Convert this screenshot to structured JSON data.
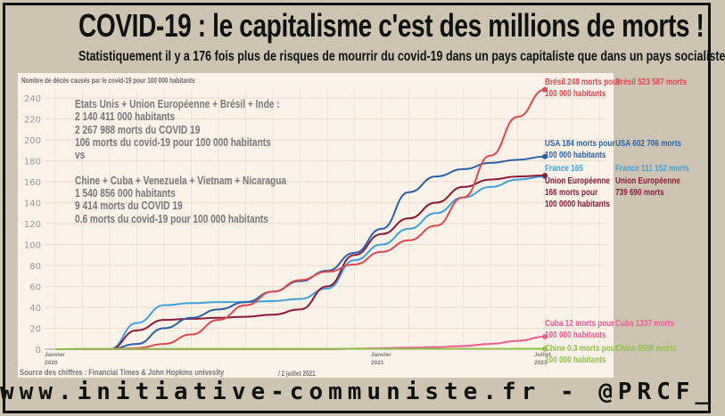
{
  "title": "COVID-19 : le capitalisme c'est des millions de morts !",
  "subtitle": "Statistiquement il y a 176 fois plus de risques de mourrir du covid-19 dans un pays capitaliste que dans un pays socialiste",
  "note": {
    "lines": [
      "Etats Unis + Union Européenne + Brésil + Inde :",
      " 2 140 411 000 habitants",
      " 2 267 988  morts du COVID 19",
      "106 morts du covid-19 pour 100 000 habitants",
      "vs",
      "",
      "Chine + Cuba + Venezuela + Vietnam + Nicaragua",
      "1 540 856 000 habitants",
      "9 414 morts du COVID 19",
      "0.6 morts du covid-19 pour 100 000 habitants"
    ]
  },
  "source": "Source des chiffres : Financial Times & John Hopkins univesity",
  "date": "/  2 juillet 2021",
  "url": "www.initiative-communiste.fr - @PRCF_",
  "chart_data": {
    "type": "line",
    "title": "Nombre de décès causés par le covid-19 pour 100 000 habitants",
    "ylim": [
      0,
      240
    ],
    "yticks": [
      0,
      20,
      40,
      60,
      80,
      100,
      120,
      140,
      160,
      180,
      200,
      220,
      240
    ],
    "xticks": [
      {
        "month": 0,
        "label": [
          "Janvier",
          "2020"
        ]
      },
      {
        "month": 12,
        "label": [
          "Janvier",
          "2021"
        ]
      },
      {
        "month": 18,
        "label": [
          "Juillet",
          "2021"
        ]
      }
    ],
    "x_months": [
      0,
      1,
      2,
      3,
      4,
      5,
      6,
      7,
      8,
      9,
      10,
      11,
      12,
      13,
      14,
      15,
      16,
      17,
      18
    ],
    "series": [
      {
        "name": "France",
        "color": "#3ea1de",
        "values": [
          0,
          0,
          0,
          25,
          42,
          44,
          45,
          45,
          46,
          48,
          58,
          85,
          100,
          115,
          130,
          145,
          155,
          162,
          165
        ],
        "label": [
          "France 165"
        ],
        "total": "France 111 152 morts"
      },
      {
        "name": "Union Européenne",
        "color": "#8b1a3a",
        "values": [
          0,
          0,
          0,
          18,
          28,
          29,
          30,
          31,
          33,
          38,
          60,
          90,
          110,
          125,
          140,
          155,
          162,
          165,
          166
        ],
        "label": [
          "Union Européenne",
          "166 morts pour",
          "100 0000 habitants"
        ],
        "total": [
          "Union Européenne",
          "739 690 morts"
        ]
      },
      {
        "name": "USA",
        "color": "#2a5fa8",
        "values": [
          0,
          0,
          0,
          5,
          20,
          30,
          38,
          45,
          55,
          65,
          75,
          92,
          115,
          150,
          165,
          172,
          178,
          181,
          184
        ],
        "label": [
          "USA 184 morts pour",
          "100 000 habitants"
        ],
        "total": "USA 602 706 morts"
      },
      {
        "name": "Brésil",
        "color": "#e04850",
        "values": [
          0,
          0,
          0,
          1,
          5,
          14,
          28,
          42,
          55,
          66,
          74,
          81,
          93,
          104,
          118,
          145,
          185,
          222,
          248
        ],
        "label": [
          "Brésil 248 morts pour",
          "100 000 habitants"
        ],
        "total": "Brésil  523 587 morts"
      },
      {
        "name": "Cuba",
        "color": "#ee5a92",
        "values": [
          0,
          0,
          0,
          0,
          0,
          0,
          0,
          0,
          0,
          0,
          0,
          0.5,
          1,
          1.5,
          2,
          3,
          5,
          8,
          12
        ],
        "label": [
          "Cuba 12 morts pour",
          "100 000 habitants"
        ],
        "total": "Cuba 1337 morts"
      },
      {
        "name": "Chine",
        "color": "#8fc24a",
        "values": [
          0,
          0.3,
          0.3,
          0.3,
          0.3,
          0.3,
          0.3,
          0.3,
          0.3,
          0.3,
          0.3,
          0.3,
          0.3,
          0.3,
          0.3,
          0.3,
          0.3,
          0.3,
          0.3
        ],
        "label": [
          "Chine 0.3 morts pour",
          "100 000 habitants"
        ],
        "total": "Chine  5568 morts"
      }
    ]
  }
}
